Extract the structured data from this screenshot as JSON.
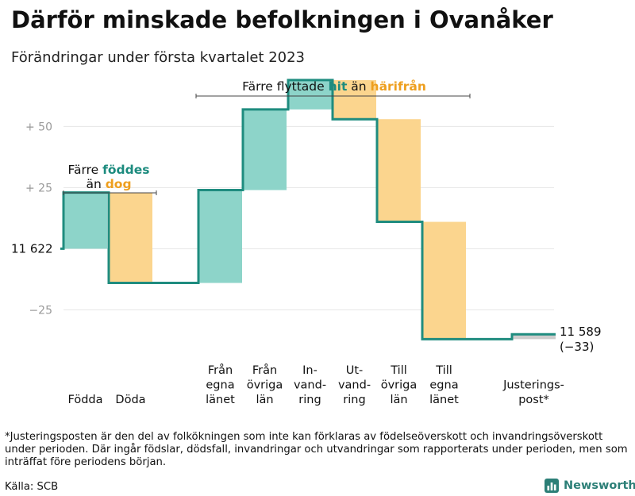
{
  "chart_data": {
    "type": "waterfall",
    "title": "Därför minskade befolkningen i Ovanåker",
    "subtitle": "Förändringar under första kvartalet 2023",
    "ylim": [
      -45,
      68
    ],
    "yticks": [
      {
        "value": -25,
        "label": "−25"
      },
      {
        "value": 25,
        "label": "+ 25"
      },
      {
        "value": 50,
        "label": "+ 50"
      }
    ],
    "start": {
      "value": 11622,
      "label": "11 622"
    },
    "end": {
      "value": 11589,
      "label": "11 589",
      "change_label": "(−33)"
    },
    "steps": [
      {
        "key": "fodda",
        "lines": [
          "Födda"
        ],
        "change": 23,
        "kind": "in"
      },
      {
        "key": "doda",
        "lines": [
          "Döda"
        ],
        "change": -37,
        "kind": "out"
      },
      {
        "key": "fran-egna-lanet",
        "lines": [
          "Från",
          "egna",
          "länet"
        ],
        "change": 38,
        "kind": "in"
      },
      {
        "key": "fran-ovriga-lan",
        "lines": [
          "Från",
          "övriga",
          "län"
        ],
        "change": 33,
        "kind": "in"
      },
      {
        "key": "invandring",
        "lines": [
          "In-",
          "vand-",
          "ring"
        ],
        "change": 12,
        "kind": "in"
      },
      {
        "key": "utvandring",
        "lines": [
          "Ut-",
          "vand-",
          "ring"
        ],
        "change": -16,
        "kind": "out"
      },
      {
        "key": "till-ovriga-lan",
        "lines": [
          "Till",
          "övriga",
          "län"
        ],
        "change": -42,
        "kind": "out"
      },
      {
        "key": "till-egna-lanet",
        "lines": [
          "Till",
          "egna",
          "länet"
        ],
        "change": -48,
        "kind": "out"
      },
      {
        "key": "justeringspost",
        "lines": [
          "Justerings-",
          "post*"
        ],
        "change": 2,
        "kind": "adjust"
      }
    ],
    "annotations": {
      "births": {
        "line1": "Färre ",
        "line1_hl": "föddes",
        "line2": "än ",
        "line2_hl": "dog"
      },
      "migration": {
        "text": "Färre flyttade ",
        "hl1": "hit",
        "mid": " än ",
        "hl2": "härifrån"
      }
    },
    "colors": {
      "in": "#8dd4c9",
      "out": "#fbd58e",
      "adjust": "#cccccc",
      "line": "#1f8c7f",
      "hl_in": "#1c8b7e",
      "hl_out": "#ee9f1e",
      "grid": "#e6e6e6",
      "axis_label": "#9a9a9a"
    }
  },
  "footnote": "*Justeringsposten är den del av folkökningen som inte kan förklaras av födelseöverskott och invandringsöverskott under perioden. Där ingår födslar, dödsfall, invandringar och utvandringar som rapporterats under perioden, men som inträffat före periodens början.",
  "source": "Källa: SCB",
  "brand": {
    "name": "Newsworthy"
  }
}
